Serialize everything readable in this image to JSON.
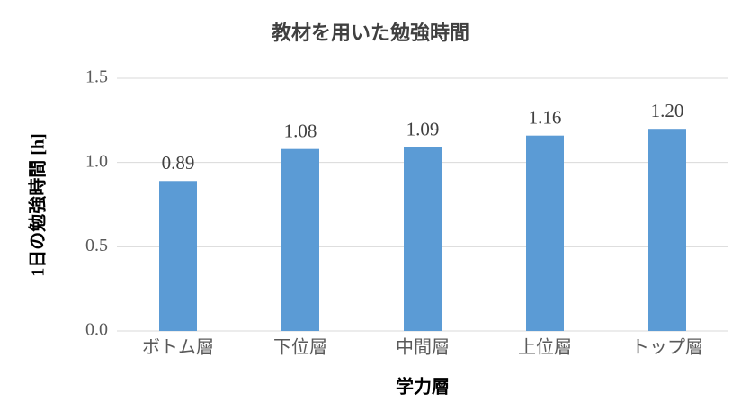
{
  "chart_data": {
    "type": "bar",
    "title": "教材を用いた勉強時間",
    "x_label": "学力層",
    "y_label": "1日の勉強時間 [h]",
    "categories": [
      "ボトム層",
      "下位層",
      "中間層",
      "上位層",
      "トップ層"
    ],
    "values": [
      0.89,
      1.08,
      1.09,
      1.16,
      1.2
    ],
    "value_labels": [
      "0.89",
      "1.08",
      "1.09",
      "1.16",
      "1.20"
    ],
    "color": "#5b9bd5",
    "ylim": [
      0,
      1.5
    ],
    "yticks": [
      {
        "value": 0,
        "label": "0.0"
      },
      {
        "value": 0.5,
        "label": "0.5"
      },
      {
        "value": 1,
        "label": "1.0"
      },
      {
        "value": 1.5,
        "label": "1.5"
      }
    ],
    "grid": true
  }
}
